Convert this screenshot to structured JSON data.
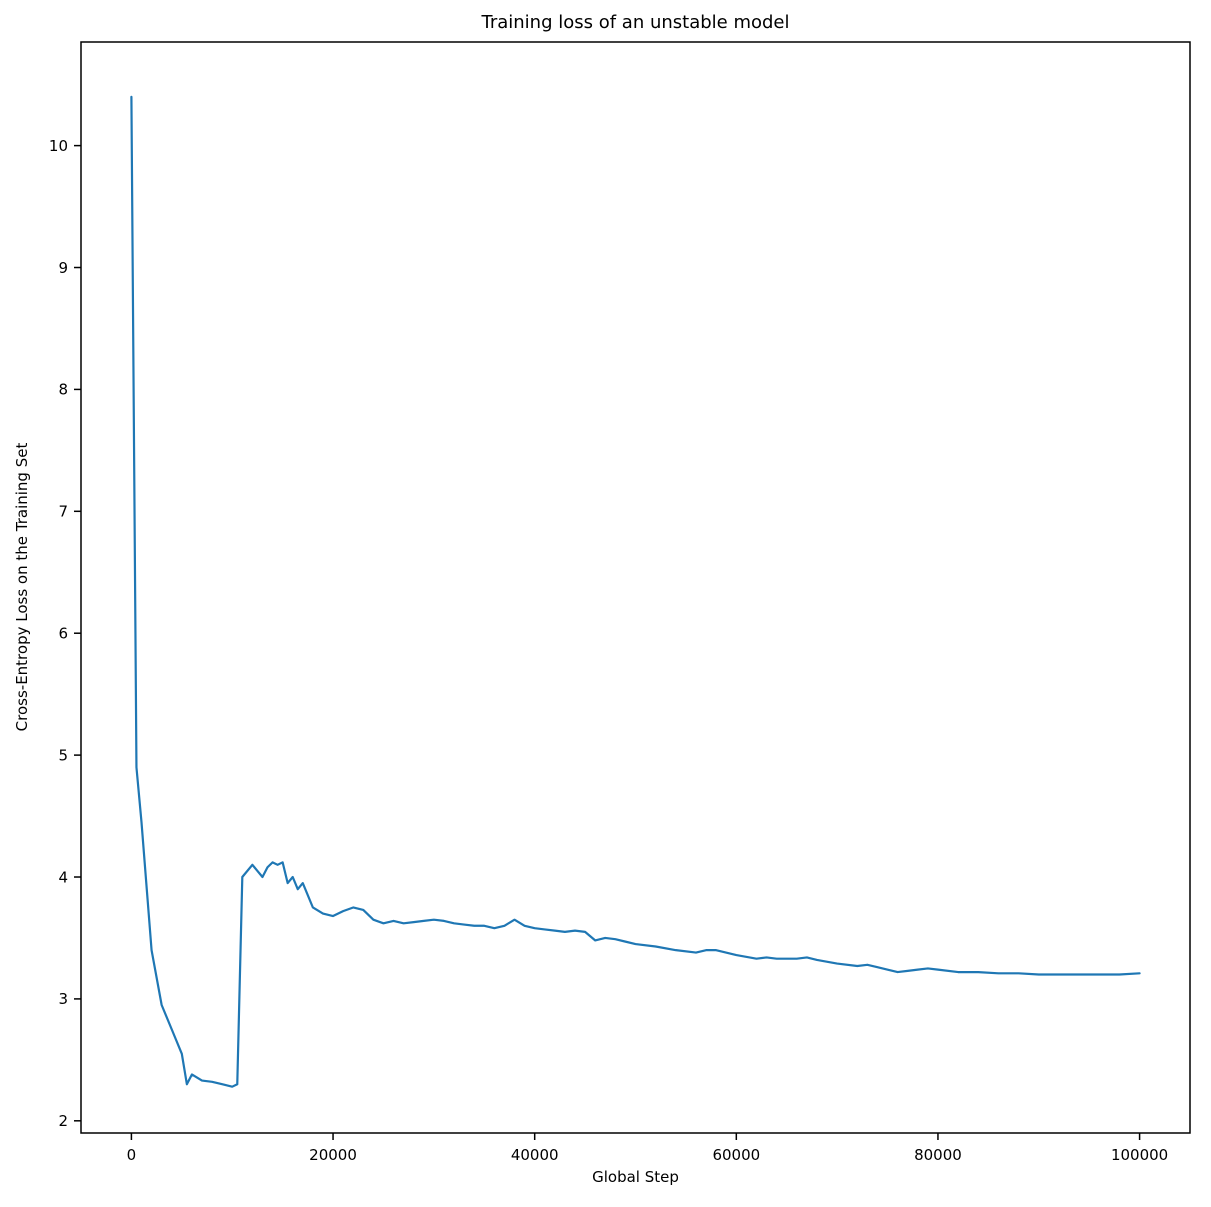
{
  "chart_data": {
    "type": "line",
    "title": "Training loss of an unstable model",
    "xlabel": "Global Step",
    "ylabel": "Cross-Entropy Loss on the Training Set",
    "xlim": [
      -5000,
      105000
    ],
    "ylim": [
      1.9,
      10.85
    ],
    "x_ticks": [
      0,
      20000,
      40000,
      60000,
      80000,
      100000
    ],
    "y_ticks": [
      2,
      3,
      4,
      5,
      6,
      7,
      8,
      9,
      10
    ],
    "grid": false,
    "legend": null,
    "line_color": "#1f77b4",
    "line_width": 2.2,
    "spine_color": "#000000",
    "series": [
      {
        "name": "training loss",
        "x": [
          0,
          500,
          1000,
          2000,
          3000,
          4000,
          5000,
          5500,
          6000,
          7000,
          8000,
          9000,
          10000,
          10500,
          11000,
          12000,
          12500,
          13000,
          13500,
          14000,
          14500,
          15000,
          15500,
          16000,
          16500,
          17000,
          18000,
          19000,
          20000,
          21000,
          22000,
          23000,
          24000,
          25000,
          26000,
          27000,
          28000,
          29000,
          30000,
          31000,
          32000,
          33000,
          34000,
          35000,
          36000,
          37000,
          38000,
          39000,
          40000,
          41000,
          42000,
          43000,
          44000,
          45000,
          46000,
          47000,
          48000,
          49000,
          50000,
          52000,
          54000,
          56000,
          57000,
          58000,
          60000,
          62000,
          63000,
          64000,
          66000,
          67000,
          68000,
          70000,
          72000,
          73000,
          74000,
          76000,
          77000,
          78000,
          79000,
          80000,
          82000,
          84000,
          86000,
          88000,
          90000,
          92000,
          94000,
          96000,
          98000,
          100000
        ],
        "y": [
          10.4,
          4.9,
          4.45,
          3.4,
          2.95,
          2.75,
          2.55,
          2.3,
          2.38,
          2.33,
          2.32,
          2.3,
          2.28,
          2.3,
          4.0,
          4.1,
          4.05,
          4.0,
          4.08,
          4.12,
          4.1,
          4.12,
          3.95,
          4.0,
          3.9,
          3.95,
          3.75,
          3.7,
          3.68,
          3.72,
          3.75,
          3.73,
          3.65,
          3.62,
          3.64,
          3.62,
          3.63,
          3.64,
          3.65,
          3.64,
          3.62,
          3.61,
          3.6,
          3.6,
          3.58,
          3.6,
          3.65,
          3.6,
          3.58,
          3.57,
          3.56,
          3.55,
          3.56,
          3.55,
          3.48,
          3.5,
          3.49,
          3.47,
          3.45,
          3.43,
          3.4,
          3.38,
          3.4,
          3.4,
          3.36,
          3.33,
          3.34,
          3.33,
          3.33,
          3.34,
          3.32,
          3.29,
          3.27,
          3.28,
          3.26,
          3.22,
          3.23,
          3.24,
          3.25,
          3.24,
          3.22,
          3.22,
          3.21,
          3.21,
          3.2,
          3.2,
          3.2,
          3.2,
          3.2,
          3.21
        ]
      }
    ]
  }
}
